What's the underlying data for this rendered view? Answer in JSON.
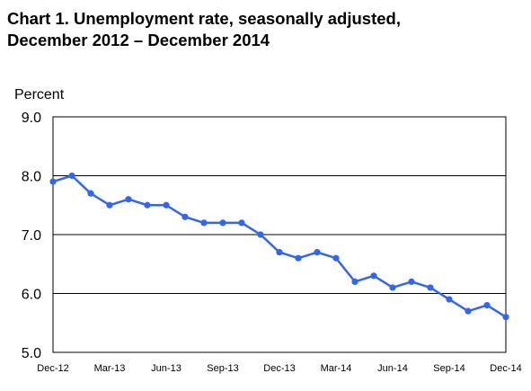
{
  "chart_data": {
    "type": "line",
    "title_lines": [
      "Chart 1. Unemployment rate, seasonally adjusted,",
      "December 2012 – December 2014"
    ],
    "ylabel": "Percent",
    "xlabel": "",
    "ylim": [
      5.0,
      9.0
    ],
    "yticks": [
      "9.0",
      "8.0",
      "7.0",
      "6.0",
      "5.0"
    ],
    "ytick_values": [
      9,
      8,
      7,
      6,
      5
    ],
    "x_tick_labels": [
      "Dec-12",
      "Mar-13",
      "Jun-13",
      "Sep-13",
      "Dec-13",
      "Mar-14",
      "Jun-14",
      "Sep-14",
      "Dec-14"
    ],
    "x": [
      "Dec-12",
      "Jan-13",
      "Feb-13",
      "Mar-13",
      "Apr-13",
      "May-13",
      "Jun-13",
      "Jul-13",
      "Aug-13",
      "Sep-13",
      "Oct-13",
      "Nov-13",
      "Dec-13",
      "Jan-14",
      "Feb-14",
      "Mar-14",
      "Apr-14",
      "May-14",
      "Jun-14",
      "Jul-14",
      "Aug-14",
      "Sep-14",
      "Oct-14",
      "Nov-14",
      "Dec-14"
    ],
    "series": [
      {
        "values": [
          7.9,
          8.0,
          7.7,
          7.5,
          7.6,
          7.5,
          7.5,
          7.3,
          7.2,
          7.2,
          7.2,
          7.0,
          6.7,
          6.6,
          6.7,
          6.6,
          6.2,
          6.3,
          6.1,
          6.2,
          6.1,
          5.9,
          5.7,
          5.8,
          5.6
        ]
      }
    ],
    "grid": "horizontal",
    "legend": "none",
    "colors": {
      "line": "#3366ee",
      "marker": "#3366ee",
      "grid": "#000000",
      "axis": "#000000"
    }
  }
}
